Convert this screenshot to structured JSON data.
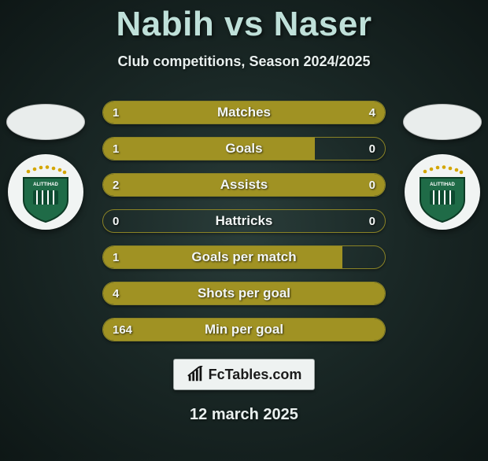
{
  "title": "Nabih vs Naser",
  "subtitle": "Club competitions, Season 2024/2025",
  "date": "12 march 2025",
  "brand": "FcTables.com",
  "colors": {
    "accent": "#a09223",
    "accent_border": "#8a8326",
    "title": "#bfe0d9",
    "text": "#e6eceb",
    "bg_inner": "#2a3d3a",
    "bg_outer": "#0e1716",
    "badge_shield": "#1f6b47",
    "badge_stars": "#d4a600"
  },
  "left_player": {
    "club": "Al Ittihad Alexandria"
  },
  "right_player": {
    "club": "Al Ittihad Alexandria"
  },
  "rows": [
    {
      "label": "Matches",
      "left": "1",
      "right": "4",
      "left_pct": 20,
      "right_pct": 80
    },
    {
      "label": "Goals",
      "left": "1",
      "right": "0",
      "left_pct": 75,
      "right_pct": 0
    },
    {
      "label": "Assists",
      "left": "2",
      "right": "0",
      "left_pct": 100,
      "right_pct": 0
    },
    {
      "label": "Hattricks",
      "left": "0",
      "right": "0",
      "left_pct": 0,
      "right_pct": 0
    },
    {
      "label": "Goals per match",
      "left": "1",
      "right": "",
      "left_pct": 85,
      "right_pct": 0
    },
    {
      "label": "Shots per goal",
      "left": "4",
      "right": "",
      "left_pct": 100,
      "right_pct": 0
    },
    {
      "label": "Min per goal",
      "left": "164",
      "right": "",
      "left_pct": 100,
      "right_pct": 0
    }
  ]
}
